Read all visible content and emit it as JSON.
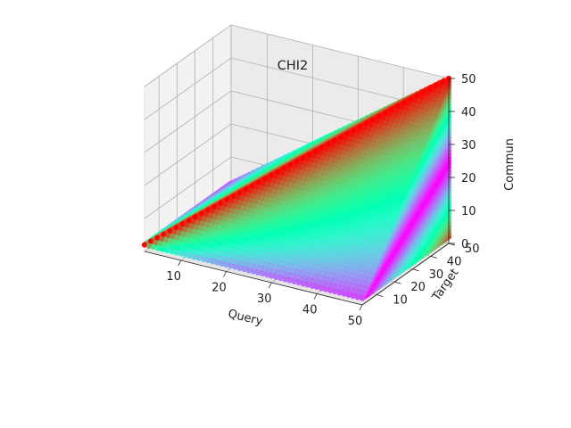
{
  "chart_data": {
    "type": "scatter",
    "title": "CHI2",
    "xlabel": "Query",
    "ylabel": "Target",
    "zlabel": "Commun",
    "xlim": [
      2,
      50
    ],
    "ylim": [
      2,
      50
    ],
    "zlim": [
      0,
      50
    ],
    "xticks": [
      "10",
      "20",
      "30",
      "40",
      "50"
    ],
    "yticks": [
      "10",
      "20",
      "30",
      "40",
      "50"
    ],
    "zticks": [
      "0",
      "10",
      "20",
      "30",
      "40",
      "50"
    ],
    "grid": true,
    "colormap": "rainbow",
    "color_by": "chi2",
    "surface": {
      "description_points": [
        {
          "query": 2,
          "target": 2,
          "commun": 2
        },
        {
          "query": 50,
          "target": 2,
          "commun": 2
        },
        {
          "query": 50,
          "target": 50,
          "commun": 2
        },
        {
          "query": 2,
          "target": 50,
          "commun": 2
        },
        {
          "query": 50,
          "target": 50,
          "commun": 50
        }
      ],
      "constraint": "commun <= min(query, target)",
      "grid_step": 1
    }
  }
}
